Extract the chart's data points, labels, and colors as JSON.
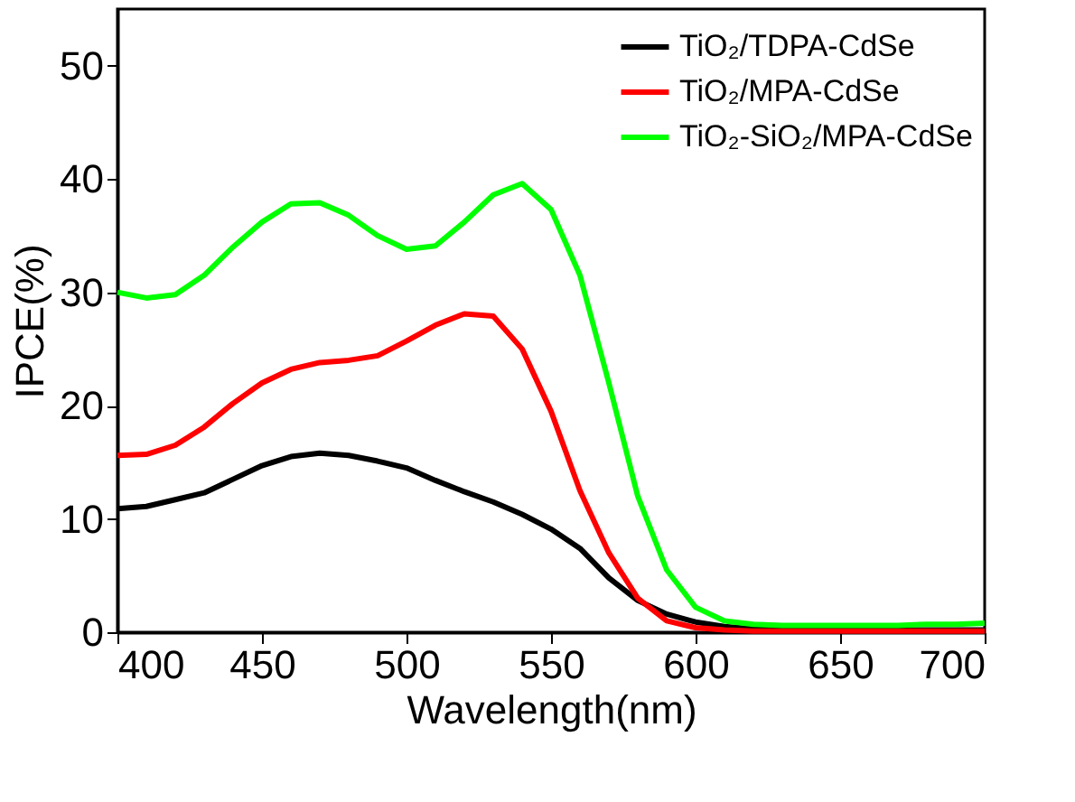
{
  "chart_data": {
    "type": "line",
    "xlabel": "Wavelength(nm)",
    "ylabel": "IPCE(%)",
    "x": [
      400,
      410,
      420,
      430,
      440,
      450,
      460,
      470,
      480,
      490,
      500,
      510,
      520,
      530,
      540,
      550,
      560,
      570,
      580,
      590,
      600,
      610,
      620,
      630,
      640,
      650,
      660,
      670,
      680,
      690,
      700
    ],
    "series": [
      {
        "name": "TiO₂/TDPA-CdSe",
        "color": "#000000",
        "values": [
          10.9,
          11.1,
          11.7,
          12.3,
          13.5,
          14.7,
          15.5,
          15.8,
          15.6,
          15.1,
          14.5,
          13.4,
          12.4,
          11.5,
          10.4,
          9.1,
          7.4,
          4.8,
          2.8,
          1.6,
          0.9,
          0.5,
          0.3,
          0.2,
          0.2,
          0.2,
          0.2,
          0.2,
          0.2,
          0.2,
          0.2
        ]
      },
      {
        "name": "TiO₂/MPA-CdSe",
        "color": "#ff0000",
        "values": [
          15.6,
          15.7,
          16.5,
          18.1,
          20.2,
          22,
          23.2,
          23.8,
          24,
          24.4,
          25.7,
          27.1,
          28.1,
          27.9,
          25,
          19.5,
          12.5,
          7,
          3,
          1,
          0.4,
          0.2,
          0.1,
          0.1,
          0.1,
          0.1,
          0.1,
          0.1,
          0.1,
          0.1,
          0.1
        ]
      },
      {
        "name": "TiO₂-SiO₂/MPA-CdSe",
        "color": "#00ff00",
        "values": [
          30,
          29.5,
          29.8,
          31.5,
          34,
          36.2,
          37.8,
          37.9,
          36.8,
          35,
          33.8,
          34.1,
          36.2,
          38.6,
          39.6,
          37.3,
          31.5,
          22,
          12,
          5.5,
          2.2,
          1,
          0.7,
          0.6,
          0.6,
          0.6,
          0.6,
          0.6,
          0.7,
          0.7,
          0.8
        ]
      }
    ],
    "xlim": [
      400,
      700
    ],
    "xticks": [
      400,
      450,
      500,
      550,
      600,
      650,
      700
    ],
    "ylim": [
      0,
      55
    ],
    "yticks": [
      0,
      10,
      20,
      30,
      40,
      50
    ],
    "grid": false,
    "legend": "top right",
    "line_style": "solid",
    "marker": "none"
  }
}
